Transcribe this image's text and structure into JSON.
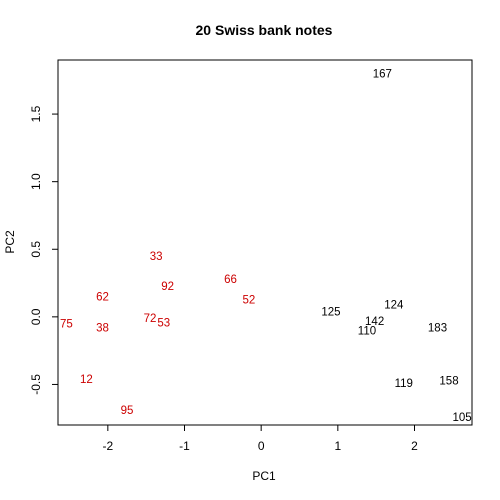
{
  "chart_data": {
    "type": "scatter",
    "title": "20 Swiss bank notes",
    "xlabel": "PC1",
    "ylabel": "PC2",
    "xlim": [
      -2.65,
      2.75
    ],
    "ylim": [
      -0.8,
      1.9
    ],
    "xticks": [
      -2,
      -1,
      0,
      1,
      2
    ],
    "yticks": [
      -0.5,
      0.0,
      0.5,
      1.0,
      1.5
    ],
    "ytick_labels": [
      "-0.5",
      "0.0",
      "0.5",
      "1.0",
      "1.5"
    ],
    "grid": false,
    "colors": {
      "genuine": "#cc0000",
      "counterfeit": "#000000"
    },
    "series": [
      {
        "points": [
          {
            "label": "75",
            "x": -2.54,
            "y": -0.05
          },
          {
            "label": "38",
            "x": -2.07,
            "y": -0.08
          },
          {
            "label": "62",
            "x": -2.07,
            "y": 0.15
          },
          {
            "label": "12",
            "x": -2.28,
            "y": -0.46
          },
          {
            "label": "95",
            "x": -1.75,
            "y": -0.69
          },
          {
            "label": "33",
            "x": -1.37,
            "y": 0.45
          },
          {
            "label": "92",
            "x": -1.22,
            "y": 0.23
          },
          {
            "label": "72",
            "x": -1.45,
            "y": -0.01
          },
          {
            "label": "53",
            "x": -1.27,
            "y": -0.04
          },
          {
            "label": "66",
            "x": -0.4,
            "y": 0.28
          },
          {
            "label": "52",
            "x": -0.16,
            "y": 0.13
          }
        ]
      },
      {
        "points": [
          {
            "label": "167",
            "x": 1.58,
            "y": 1.8
          },
          {
            "label": "125",
            "x": 0.91,
            "y": 0.04
          },
          {
            "label": "124",
            "x": 1.73,
            "y": 0.09
          },
          {
            "label": "142",
            "x": 1.48,
            "y": -0.03
          },
          {
            "label": "110",
            "x": 1.38,
            "y": -0.1
          },
          {
            "label": "183",
            "x": 2.3,
            "y": -0.08
          },
          {
            "label": "119",
            "x": 1.86,
            "y": -0.49
          },
          {
            "label": "158",
            "x": 2.45,
            "y": -0.47
          },
          {
            "label": "105",
            "x": 2.62,
            "y": -0.74
          }
        ]
      }
    ]
  }
}
